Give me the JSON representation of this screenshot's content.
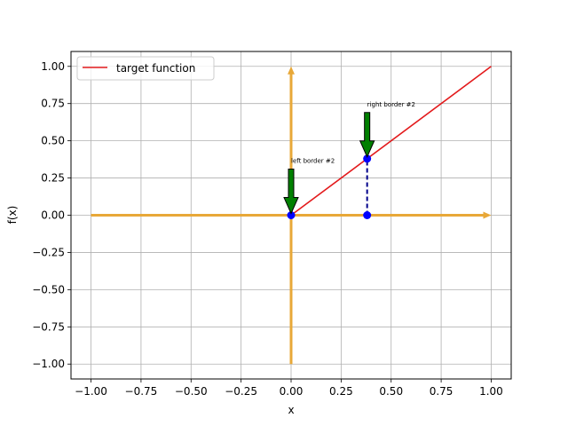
{
  "chart_data": {
    "type": "line",
    "title": "",
    "xlabel": "x",
    "ylabel": "f(x)",
    "xlim": [
      -1.1,
      1.1
    ],
    "ylim": [
      -1.1,
      1.1
    ],
    "xticks": [
      -1.0,
      -0.75,
      -0.5,
      -0.25,
      0.0,
      0.25,
      0.5,
      0.75,
      1.0
    ],
    "yticks": [
      -1.0,
      -0.75,
      -0.5,
      -0.25,
      0.0,
      0.25,
      0.5,
      0.75,
      1.0
    ],
    "xtick_labels": [
      "−1.00",
      "−0.75",
      "−0.50",
      "−0.25",
      "0.00",
      "0.25",
      "0.50",
      "0.75",
      "1.00"
    ],
    "ytick_labels": [
      "−1.00",
      "−0.75",
      "−0.50",
      "−0.25",
      "0.00",
      "0.25",
      "0.50",
      "0.75",
      "1.00"
    ],
    "grid": true,
    "legend_position": "top-left",
    "series": [
      {
        "name": "target function",
        "color": "#e31a1c",
        "x": [
          0.0,
          1.0
        ],
        "y": [
          0.0,
          1.0
        ]
      }
    ],
    "axis_arrows": {
      "color": "#e8a838",
      "horizontal": {
        "from": [
          -1.0,
          0.0
        ],
        "to": [
          1.0,
          0.0
        ]
      },
      "vertical": {
        "from": [
          0.0,
          -1.0
        ],
        "to": [
          0.0,
          1.0
        ]
      }
    },
    "points": {
      "color": "#0000ff",
      "values": [
        {
          "x": 0.0,
          "y": 0.0
        },
        {
          "x": 0.38,
          "y": 0.38
        },
        {
          "x": 0.38,
          "y": 0.0
        }
      ]
    },
    "dashed_segment": {
      "color": "#00008b",
      "x": 0.38,
      "y_from": 0.0,
      "y_to": 0.38
    },
    "annotations": [
      {
        "text": "left border #2",
        "x": 0.0,
        "y": 0.0,
        "arrow_color": "#008000"
      },
      {
        "text": "right border #2",
        "x": 0.38,
        "y": 0.38,
        "arrow_color": "#008000"
      }
    ]
  }
}
